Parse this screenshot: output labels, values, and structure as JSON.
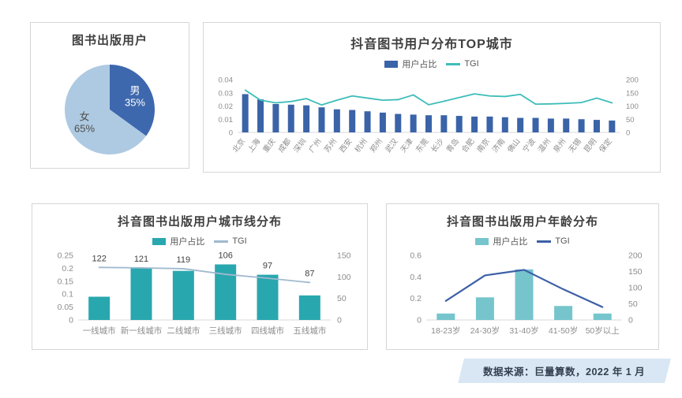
{
  "footer": {
    "label": "数据来源：巨量算数，2022 年 1 月"
  },
  "colors": {
    "card_border": "#d6d6d6",
    "axis_text": "#8c8c8c",
    "title_text": "#3f3f3f",
    "legend_text": "#555555",
    "baseline": "#d9d9d9",
    "data_label": "#3f3f3f",
    "footer_bg": "#d9e7f4",
    "footer_text": "#333f50"
  },
  "chart_data": [
    {
      "type": "pie",
      "title": "图书出版用户",
      "legend_position": "none",
      "slices": [
        {
          "label": "男",
          "pct_label": "35%",
          "value": 35,
          "color": "#3e68ae",
          "label_color": "#ffffff"
        },
        {
          "label": "女",
          "pct_label": "65%",
          "value": 65,
          "color": "#aecae2",
          "label_color": "#4d4d4d"
        }
      ]
    },
    {
      "type": "bar+line",
      "title": "抖音图书用户分布TOP城市",
      "legend_position": "top",
      "grid": false,
      "categories": [
        "北京",
        "上海",
        "重庆",
        "成都",
        "深圳",
        "广州",
        "苏州",
        "西安",
        "杭州",
        "郑州",
        "武汉",
        "天津",
        "东莞",
        "长沙",
        "青岛",
        "合肥",
        "南京",
        "济南",
        "佛山",
        "宁波",
        "温州",
        "泉州",
        "无锡",
        "昆明",
        "保定"
      ],
      "series": [
        {
          "name": "用户占比",
          "kind": "bar",
          "axis": "left",
          "color": "#3a63a8",
          "values": [
            0.029,
            0.025,
            0.0215,
            0.021,
            0.0205,
            0.019,
            0.0175,
            0.017,
            0.016,
            0.015,
            0.014,
            0.0135,
            0.013,
            0.013,
            0.0125,
            0.012,
            0.012,
            0.0115,
            0.011,
            0.011,
            0.0105,
            0.0105,
            0.01,
            0.0095,
            0.009
          ]
        },
        {
          "name": "TGI",
          "kind": "line",
          "axis": "right",
          "color": "#3dbdb9",
          "values": [
            160,
            122,
            112,
            117,
            128,
            104,
            122,
            138,
            130,
            122,
            124,
            142,
            105,
            118,
            132,
            146,
            138,
            136,
            144,
            107,
            108,
            110,
            113,
            130,
            112
          ]
        }
      ],
      "left_axis": {
        "ticks": [
          "0.04",
          "0.03",
          "0.02",
          "0.01",
          "0"
        ],
        "max": 0.04
      },
      "right_axis": {
        "ticks": [
          "200",
          "150",
          "100",
          "50",
          "0"
        ],
        "max": 200
      }
    },
    {
      "type": "bar+line",
      "title": "抖音图书出版用户城市线分布",
      "legend_position": "top",
      "grid": false,
      "data_labels": true,
      "categories": [
        "一线城市",
        "新一线城市",
        "二线城市",
        "三线城市",
        "四线城市",
        "五线城市"
      ],
      "series": [
        {
          "name": "用户占比",
          "kind": "bar",
          "axis": "left",
          "color": "#29a7ae",
          "values": [
            0.09,
            0.2,
            0.19,
            0.215,
            0.175,
            0.095
          ]
        },
        {
          "name": "TGI",
          "kind": "line",
          "axis": "right",
          "color": "#a0b9d0",
          "values": [
            122,
            121,
            119,
            106,
            97,
            87
          ]
        }
      ],
      "left_axis": {
        "ticks": [
          "0.25",
          "0.2",
          "0.15",
          "0.1",
          "0.05",
          "0"
        ],
        "max": 0.25
      },
      "right_axis": {
        "ticks": [
          "150",
          "100",
          "50",
          "0"
        ],
        "max": 150
      }
    },
    {
      "type": "bar+line",
      "title": "抖音图书出版用户年龄分布",
      "legend_position": "top",
      "grid": false,
      "categories": [
        "18-23岁",
        "24-30岁",
        "31-40岁",
        "41-50岁",
        "50岁以上"
      ],
      "series": [
        {
          "name": "用户占比",
          "kind": "bar",
          "axis": "left",
          "color": "#76c5cd",
          "values": [
            0.06,
            0.21,
            0.47,
            0.13,
            0.06
          ]
        },
        {
          "name": "TGI",
          "kind": "line",
          "axis": "right",
          "color": "#3c5fa7",
          "values": [
            59,
            138,
            155,
            95,
            40
          ]
        }
      ],
      "left_axis": {
        "ticks": [
          "0.6",
          "0.4",
          "0.2",
          "0"
        ],
        "max": 0.6
      },
      "right_axis": {
        "ticks": [
          "200",
          "150",
          "100",
          "50",
          "0"
        ],
        "max": 200
      }
    }
  ]
}
